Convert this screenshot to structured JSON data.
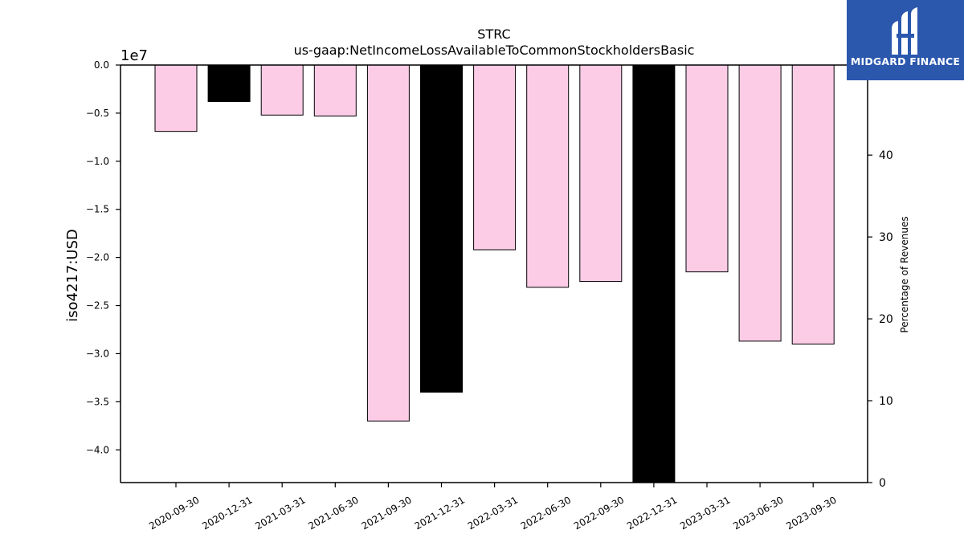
{
  "chart_data": {
    "type": "bar",
    "title": "STRC",
    "subtitle": "us-gaap:NetIncomeLossAvailableToCommonStockholdersBasic",
    "ylabel": "iso4217:USD",
    "y_offset_label": "1e7",
    "y2label": "Percentage of Revenues",
    "categories": [
      "2020-09-30",
      "2020-12-31",
      "2021-03-31",
      "2021-06-30",
      "2021-09-30",
      "2021-12-31",
      "2022-03-31",
      "2022-06-30",
      "2022-09-30",
      "2022-12-31",
      "2023-03-31",
      "2023-06-30",
      "2023-09-30"
    ],
    "values": [
      -6900000,
      -3800000,
      -5200000,
      -5300000,
      -37000000,
      -34000000,
      -19200000,
      -23100000,
      -22500000,
      -43400000,
      -21500000,
      -28700000,
      -29000000
    ],
    "bar_colors": [
      "#fccce6",
      "#000000",
      "#fccce6",
      "#fccce6",
      "#fccce6",
      "#000000",
      "#fccce6",
      "#fccce6",
      "#fccce6",
      "#000000",
      "#fccce6",
      "#fccce6",
      "#fccce6"
    ],
    "ylim": [
      -43400000,
      0
    ],
    "yticks": [
      0,
      -5000000,
      -10000000,
      -15000000,
      -20000000,
      -25000000,
      -30000000,
      -35000000,
      -40000000
    ],
    "ytick_labels": [
      "0.0",
      "−0.5",
      "−1.0",
      "−1.5",
      "−2.0",
      "−2.5",
      "−3.0",
      "−3.5",
      "−4.0"
    ],
    "y2lim": [
      0,
      51
    ],
    "y2ticks": [
      0,
      10,
      20,
      30,
      40
    ],
    "y2tick_labels": [
      "0",
      "10",
      "20",
      "30",
      "40"
    ],
    "grid": false
  },
  "logo": {
    "text": "MIDGARD FINANCE",
    "color": "#2b57ad"
  }
}
